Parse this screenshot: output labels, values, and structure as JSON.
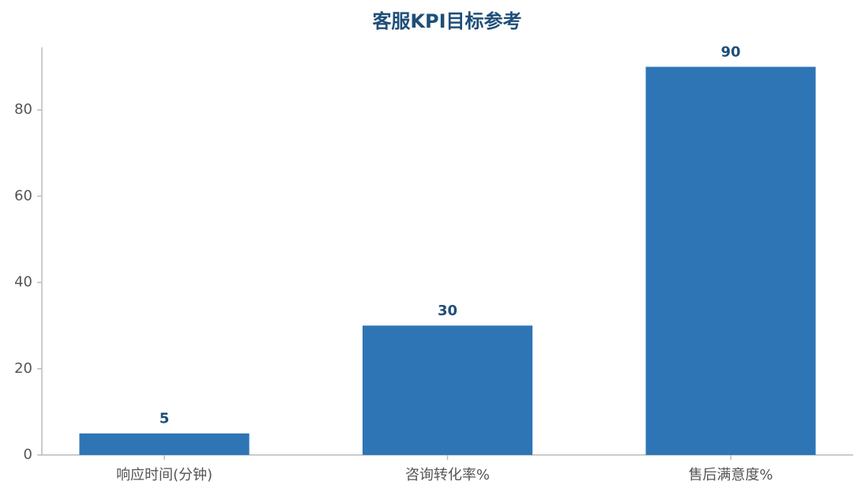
{
  "chart_data": {
    "type": "bar",
    "title": "客服KPI目标参考",
    "categories": [
      "响应时间(分钟)",
      "咨询转化率%",
      "售后满意度%"
    ],
    "values": [
      5,
      30,
      90
    ],
    "color": "#2e75b6",
    "label_color": "#1f4e79",
    "ylim": [
      0,
      94.5
    ],
    "yticks": [
      0,
      20,
      40,
      60,
      80
    ],
    "grid": false
  }
}
